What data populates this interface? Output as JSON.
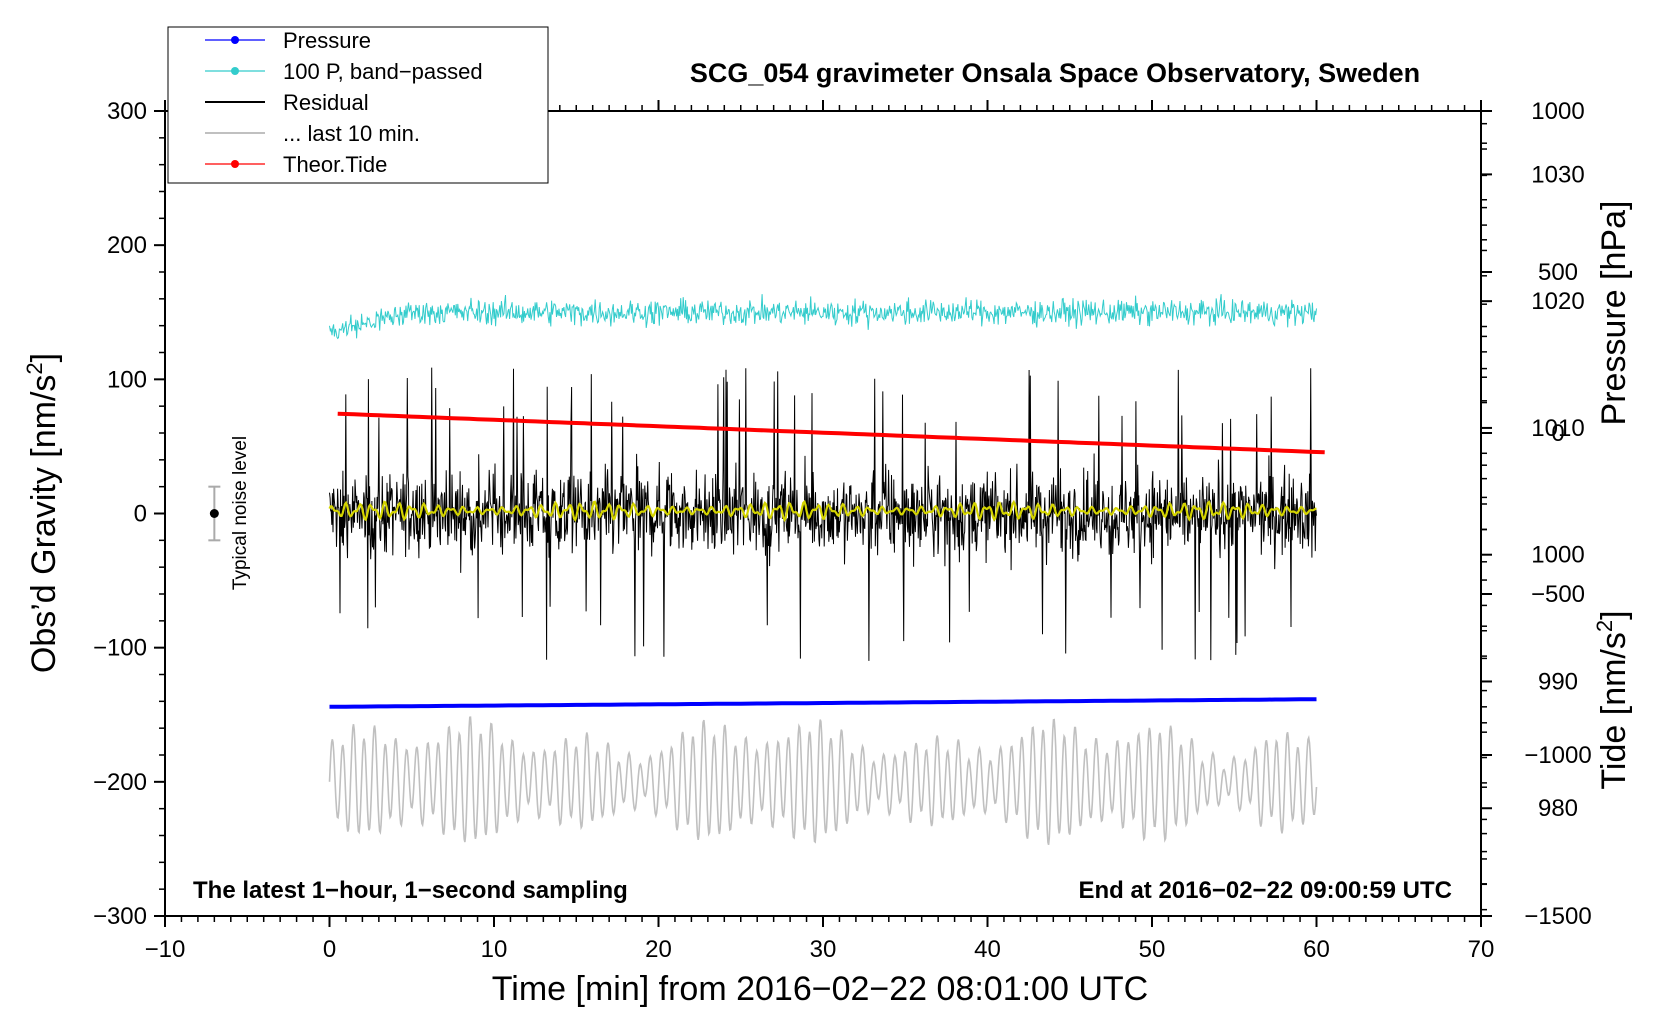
{
  "chart_data": {
    "type": "line",
    "title": "SCG_054 gravimeter Onsala Space Observatory, Sweden",
    "xlabel": "Time [min] from 2016−02−22 08:01:00 UTC",
    "ylabel_left_main": "Obs’d Gravity [nm/s",
    "ylabel_left_sup": "2",
    "ylabel_left_end": "]",
    "ylabel_right_top": "Pressure [hPa]",
    "ylabel_right_bottom_main": "Tide [nm/s",
    "ylabel_right_bottom_sup": "2",
    "ylabel_right_bottom_end": "]",
    "xlim": [
      -10,
      70
    ],
    "ylim": [
      -300,
      300
    ],
    "pressure_axis_range": [
      971.5,
      1035
    ],
    "tide_axis_range": [
      -1500,
      1000
    ],
    "x_ticks": [
      "−10",
      "0",
      "10",
      "20",
      "30",
      "40",
      "50",
      "60",
      "70"
    ],
    "y_ticks": [
      "−300",
      "−200",
      "−100",
      "0",
      "100",
      "200",
      "300"
    ],
    "pressure_ticks": [
      "980",
      "990",
      "1000",
      "1010",
      "1020",
      "1030"
    ],
    "tide_ticks": [
      "−1500",
      "−1000",
      "−500",
      "0",
      "500",
      "1000"
    ],
    "legend": [
      {
        "label": "Pressure",
        "color": "#0000ff",
        "marker": true
      },
      {
        "label": "100 P, band−passed",
        "color": "#33cccc",
        "marker": true
      },
      {
        "label": "Residual",
        "color": "#000000",
        "marker": false
      },
      {
        "label": "... last 10 min.",
        "color": "#c0c0c0",
        "marker": false
      },
      {
        "label": "Theor.Tide",
        "color": "#ff0000",
        "marker": true
      }
    ],
    "noise_level_label": "Typical noise level",
    "noise_level": {
      "x": -7,
      "y": 0,
      "err": 20
    },
    "annotation_left": "The latest 1−hour, 1−second sampling",
    "annotation_right": "End at 2016−02−22 09:00:59 UTC",
    "series": [
      {
        "name": "Pressure",
        "color": "#0000ff",
        "x_range": [
          0,
          60
        ],
        "start_hpa": 988.0,
        "end_hpa": 988.6
      },
      {
        "name": "100 P, band-passed",
        "color": "#33cccc",
        "x_range": [
          0,
          60
        ],
        "mean_nm_s2": 150,
        "amplitude_nm_s2": 15
      },
      {
        "name": "Residual",
        "color": "#000000",
        "x_range": [
          0,
          60
        ],
        "mean_nm_s2": 0,
        "amplitude_nm_s2": 40,
        "extreme_nm_s2": 110
      },
      {
        "name": "Residual (smoothed)",
        "color": "#d4d400",
        "x_range": [
          0,
          60
        ],
        "mean_nm_s2": 2,
        "amplitude_nm_s2": 7
      },
      {
        "name": "... last 10 min.",
        "color": "#c0c0c0",
        "x_range": [
          0,
          60
        ],
        "mean_nm_s2": -200,
        "amplitude_nm_s2": 35,
        "extreme_nm_s2": 85
      },
      {
        "name": "Theor.Tide",
        "color": "#ff0000",
        "x_range": [
          0.5,
          60.5
        ],
        "start_tide": 60,
        "end_tide": -60
      }
    ]
  }
}
